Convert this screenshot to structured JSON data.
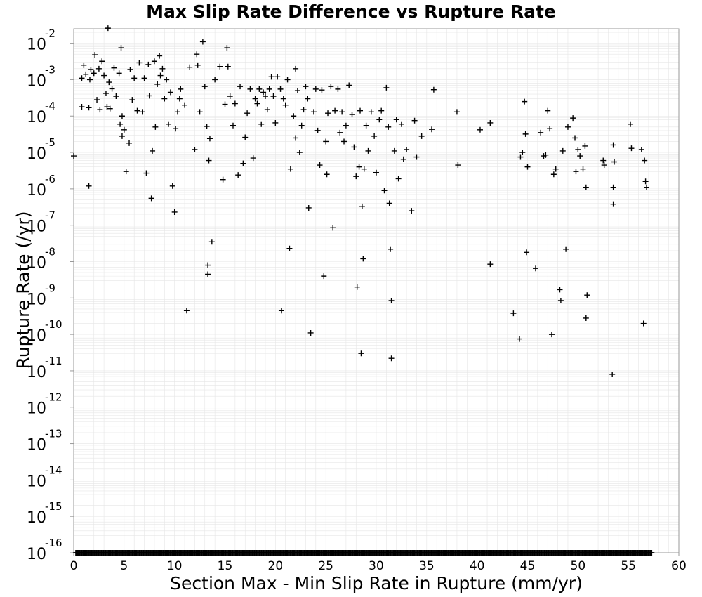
{
  "chart_data": {
    "type": "scatter",
    "title": "Max Slip Rate Difference vs Rupture Rate",
    "xlabel": "Section Max - Min Slip Rate in Rupture (mm/yr)",
    "ylabel": "Rupture Rate (/yr)",
    "xlim": [
      0,
      60
    ],
    "ylim": [
      1e-16,
      0.025
    ],
    "yscale": "log",
    "grid": true,
    "marker": "+",
    "colors": {
      "marker": "#000000",
      "grid": "#e6e6e6",
      "frame": "#999999"
    },
    "x_ticks": [
      "0",
      "5",
      "10",
      "15",
      "20",
      "25",
      "30",
      "35",
      "40",
      "45",
      "50",
      "55",
      "60"
    ],
    "y_ticks": [
      {
        "base": "10",
        "exp": "-2"
      },
      {
        "base": "10",
        "exp": "-3"
      },
      {
        "base": "10",
        "exp": "-4"
      },
      {
        "base": "10",
        "exp": "-5"
      },
      {
        "base": "10",
        "exp": "-6"
      },
      {
        "base": "10",
        "exp": "-7"
      },
      {
        "base": "10",
        "exp": "-8"
      },
      {
        "base": "10",
        "exp": "-9"
      },
      {
        "base": "10",
        "exp": "-10"
      },
      {
        "base": "10",
        "exp": "-11"
      },
      {
        "base": "10",
        "exp": "-12"
      },
      {
        "base": "10",
        "exp": "-13"
      },
      {
        "base": "10",
        "exp": "-14"
      },
      {
        "base": "10",
        "exp": "-15"
      },
      {
        "base": "10",
        "exp": "-16"
      }
    ],
    "points": [
      [
        0.0,
        8e-06
      ],
      [
        0.8,
        0.0011
      ],
      [
        0.8,
        0.00018
      ],
      [
        1.0,
        0.0025
      ],
      [
        1.2,
        0.0014
      ],
      [
        1.5,
        0.00017
      ],
      [
        1.5,
        1.2e-06
      ],
      [
        1.6,
        0.001
      ],
      [
        1.7,
        0.0019
      ],
      [
        2.0,
        0.0015
      ],
      [
        2.1,
        0.0048
      ],
      [
        2.3,
        0.00028
      ],
      [
        2.5,
        0.002
      ],
      [
        2.6,
        0.00015
      ],
      [
        2.8,
        0.0032
      ],
      [
        3.0,
        0.0013
      ],
      [
        3.2,
        0.00042
      ],
      [
        3.3,
        0.00018
      ],
      [
        3.4,
        0.026
      ],
      [
        3.5,
        0.00085
      ],
      [
        3.6,
        0.00016
      ],
      [
        3.8,
        0.00056
      ],
      [
        4.0,
        0.0021
      ],
      [
        4.2,
        0.00035
      ],
      [
        4.5,
        0.0015
      ],
      [
        4.6,
        6e-05
      ],
      [
        4.7,
        0.0075
      ],
      [
        4.8,
        2.8e-05
      ],
      [
        4.8,
        0.0001
      ],
      [
        5.0,
        4.2e-05
      ],
      [
        5.2,
        3e-06
      ],
      [
        5.5,
        1.8e-05
      ],
      [
        5.6,
        0.0019
      ],
      [
        5.8,
        0.00028
      ],
      [
        6.0,
        0.0011
      ],
      [
        6.3,
        0.00014
      ],
      [
        6.5,
        0.0029
      ],
      [
        6.8,
        0.00013
      ],
      [
        7.0,
        0.0011
      ],
      [
        7.2,
        2.7e-06
      ],
      [
        7.4,
        0.0026
      ],
      [
        7.5,
        0.00036
      ],
      [
        7.7,
        5.5e-07
      ],
      [
        7.8,
        1.1e-05
      ],
      [
        8.0,
        0.0032
      ],
      [
        8.1,
        5e-05
      ],
      [
        8.3,
        0.00075
      ],
      [
        8.5,
        0.0045
      ],
      [
        8.6,
        0.0013
      ],
      [
        8.8,
        0.002
      ],
      [
        9.0,
        0.0003
      ],
      [
        9.2,
        0.001
      ],
      [
        9.4,
        6e-05
      ],
      [
        9.6,
        0.00045
      ],
      [
        9.8,
        1.2e-06
      ],
      [
        10.0,
        2.3e-07
      ],
      [
        10.1,
        4.5e-05
      ],
      [
        10.3,
        0.00013
      ],
      [
        10.5,
        0.0003
      ],
      [
        10.6,
        0.00055
      ],
      [
        11.0,
        0.0002
      ],
      [
        11.2,
        4.5e-10
      ],
      [
        11.5,
        0.0022
      ],
      [
        12.0,
        1.2e-05
      ],
      [
        12.2,
        0.005
      ],
      [
        12.3,
        0.0025
      ],
      [
        12.5,
        0.00013
      ],
      [
        12.8,
        0.011
      ],
      [
        13.0,
        0.00065
      ],
      [
        13.2,
        5.2e-05
      ],
      [
        13.3,
        8e-09
      ],
      [
        13.3,
        4.5e-09
      ],
      [
        13.4,
        6e-06
      ],
      [
        13.5,
        2.4e-05
      ],
      [
        13.7,
        3.5e-08
      ],
      [
        14.0,
        0.001
      ],
      [
        14.5,
        0.0023
      ],
      [
        14.8,
        1.8e-06
      ],
      [
        15.0,
        0.00021
      ],
      [
        15.2,
        0.0075
      ],
      [
        15.3,
        0.0023
      ],
      [
        15.5,
        0.00035
      ],
      [
        15.8,
        5.5e-05
      ],
      [
        16.0,
        0.00022
      ],
      [
        16.3,
        2.4e-06
      ],
      [
        16.5,
        0.00065
      ],
      [
        16.8,
        5e-06
      ],
      [
        17.0,
        2.6e-05
      ],
      [
        17.2,
        0.00012
      ],
      [
        17.5,
        0.00055
      ],
      [
        17.8,
        7e-06
      ],
      [
        18.0,
        0.0003
      ],
      [
        18.2,
        0.00022
      ],
      [
        18.4,
        0.00055
      ],
      [
        18.6,
        6e-05
      ],
      [
        18.8,
        0.00045
      ],
      [
        19.0,
        0.00035
      ],
      [
        19.2,
        0.00015
      ],
      [
        19.4,
        0.00055
      ],
      [
        19.6,
        0.0012
      ],
      [
        19.8,
        0.00035
      ],
      [
        20.0,
        6.5e-05
      ],
      [
        20.2,
        0.0012
      ],
      [
        20.5,
        0.00055
      ],
      [
        20.6,
        4.5e-10
      ],
      [
        20.8,
        0.0003
      ],
      [
        21.0,
        0.0002
      ],
      [
        21.2,
        0.001
      ],
      [
        21.4,
        2.3e-08
      ],
      [
        21.5,
        3.5e-06
      ],
      [
        21.8,
        0.0001
      ],
      [
        22.0,
        0.002
      ],
      [
        22.0,
        2.5e-05
      ],
      [
        22.2,
        0.0005
      ],
      [
        22.4,
        1e-05
      ],
      [
        22.6,
        5.5e-05
      ],
      [
        22.8,
        0.00015
      ],
      [
        23.0,
        0.00065
      ],
      [
        23.2,
        0.0003
      ],
      [
        23.3,
        3e-07
      ],
      [
        23.5,
        1.1e-10
      ],
      [
        23.8,
        0.00013
      ],
      [
        24.0,
        0.00055
      ],
      [
        24.2,
        4e-05
      ],
      [
        24.4,
        4.5e-06
      ],
      [
        24.6,
        0.00052
      ],
      [
        24.8,
        4e-09
      ],
      [
        25.0,
        2e-05
      ],
      [
        25.1,
        2.5e-06
      ],
      [
        25.2,
        0.00012
      ],
      [
        25.5,
        0.00065
      ],
      [
        25.7,
        8.5e-08
      ],
      [
        25.9,
        0.00014
      ],
      [
        26.2,
        0.00055
      ],
      [
        26.4,
        3.5e-05
      ],
      [
        26.6,
        0.00013
      ],
      [
        26.8,
        2e-05
      ],
      [
        27.0,
        5.5e-05
      ],
      [
        27.3,
        0.0007
      ],
      [
        27.6,
        0.00011
      ],
      [
        27.8,
        1.4e-05
      ],
      [
        28.0,
        2.2e-06
      ],
      [
        28.1,
        2e-09
      ],
      [
        28.3,
        4e-06
      ],
      [
        28.4,
        0.00014
      ],
      [
        28.5,
        3e-11
      ],
      [
        28.6,
        3.3e-07
      ],
      [
        28.7,
        1.2e-08
      ],
      [
        28.8,
        3.5e-06
      ],
      [
        29.0,
        5.5e-05
      ],
      [
        29.2,
        1.1e-05
      ],
      [
        29.5,
        0.00013
      ],
      [
        29.8,
        2.8e-05
      ],
      [
        30.0,
        2.8e-06
      ],
      [
        30.3,
        8e-05
      ],
      [
        30.5,
        0.00014
      ],
      [
        30.8,
        9e-07
      ],
      [
        31.0,
        0.0006
      ],
      [
        31.2,
        5e-05
      ],
      [
        31.3,
        4e-07
      ],
      [
        31.4,
        2.2e-08
      ],
      [
        31.5,
        8.5e-10
      ],
      [
        31.5,
        2.2e-11
      ],
      [
        31.8,
        1.1e-05
      ],
      [
        32.0,
        8e-05
      ],
      [
        32.2,
        1.9e-06
      ],
      [
        32.5,
        6e-05
      ],
      [
        32.7,
        6.5e-06
      ],
      [
        33.0,
        1.2e-05
      ],
      [
        33.5,
        2.5e-07
      ],
      [
        33.8,
        7.5e-05
      ],
      [
        34.0,
        7.5e-06
      ],
      [
        34.5,
        2.8e-05
      ],
      [
        35.5,
        4.3e-05
      ],
      [
        35.7,
        0.00053
      ],
      [
        38.0,
        0.00013
      ],
      [
        38.1,
        4.5e-06
      ],
      [
        40.3,
        4.2e-05
      ],
      [
        41.3,
        6.5e-05
      ],
      [
        41.3,
        8.5e-09
      ],
      [
        43.6,
        3.8e-10
      ],
      [
        44.2,
        7.5e-11
      ],
      [
        44.3,
        7.5e-06
      ],
      [
        44.5,
        1e-05
      ],
      [
        44.7,
        0.00025
      ],
      [
        44.8,
        3.2e-05
      ],
      [
        44.9,
        1.8e-08
      ],
      [
        45.0,
        4e-06
      ],
      [
        45.8,
        6.5e-09
      ],
      [
        46.3,
        3.5e-05
      ],
      [
        46.6,
        8e-06
      ],
      [
        46.8,
        8.5e-06
      ],
      [
        47.0,
        0.00014
      ],
      [
        47.2,
        4.5e-05
      ],
      [
        47.4,
        1e-10
      ],
      [
        47.6,
        2.5e-06
      ],
      [
        47.8,
        3.5e-06
      ],
      [
        48.2,
        1.7e-09
      ],
      [
        48.3,
        8.5e-10
      ],
      [
        48.5,
        1.1e-05
      ],
      [
        48.8,
        2.2e-08
      ],
      [
        49.0,
        5e-05
      ],
      [
        49.5,
        8.8e-05
      ],
      [
        49.7,
        2.5e-05
      ],
      [
        49.8,
        3e-06
      ],
      [
        50.0,
        1.2e-05
      ],
      [
        50.2,
        8e-06
      ],
      [
        50.5,
        3.5e-06
      ],
      [
        50.7,
        1.5e-05
      ],
      [
        50.8,
        1.1e-06
      ],
      [
        50.8,
        2.8e-10
      ],
      [
        50.9,
        1.2e-09
      ],
      [
        52.5,
        6e-06
      ],
      [
        52.6,
        4.5e-06
      ],
      [
        53.4,
        8e-12
      ],
      [
        53.5,
        1.6e-05
      ],
      [
        53.5,
        1.1e-06
      ],
      [
        53.5,
        3.8e-07
      ],
      [
        53.6,
        5.5e-06
      ],
      [
        55.2,
        6e-05
      ],
      [
        55.3,
        1.3e-05
      ],
      [
        56.3,
        1.2e-05
      ],
      [
        56.5,
        2e-10
      ],
      [
        56.6,
        6e-06
      ],
      [
        56.7,
        1.6e-06
      ],
      [
        56.8,
        1.1e-06
      ]
    ],
    "floor_x": [
      0.2,
      0.9,
      1.6,
      2.3,
      3.0,
      3.7,
      4.4,
      5.1,
      5.8,
      6.5,
      7.2,
      7.9,
      8.6,
      9.3,
      10.0,
      10.7,
      11.4,
      12.1,
      12.8,
      13.5,
      14.2,
      14.9,
      15.6,
      16.3,
      17.0,
      17.7,
      18.4,
      19.1,
      19.8,
      20.5,
      21.2,
      21.9,
      22.6,
      23.3,
      24.0,
      24.7,
      25.4,
      26.1,
      26.8,
      27.5,
      28.2,
      28.9,
      29.6,
      30.3,
      31.0,
      31.7,
      32.4,
      33.1,
      33.8,
      34.5,
      35.2,
      35.9,
      36.6,
      37.3,
      38.0,
      38.7,
      39.4,
      40.1,
      40.8,
      41.5,
      42.2,
      42.9,
      43.6,
      44.3,
      45.0,
      45.7,
      46.4,
      47.1,
      47.8,
      48.5,
      49.2,
      49.9,
      50.6,
      51.3,
      52.0,
      52.7,
      53.4,
      54.1,
      54.8,
      55.5,
      56.2,
      56.7
    ]
  }
}
